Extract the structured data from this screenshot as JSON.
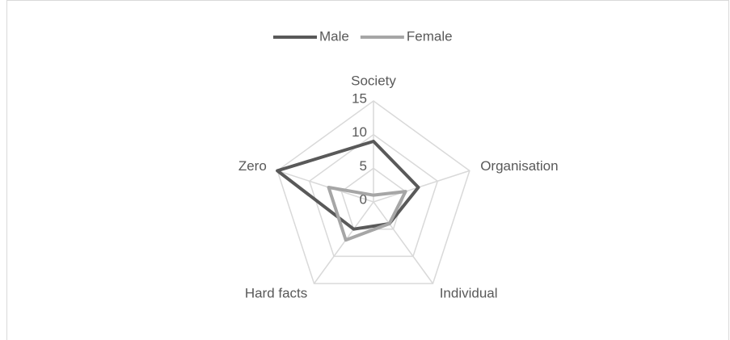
{
  "chart_data": {
    "type": "radar",
    "categories": [
      "Society",
      "Organisation",
      "Individual",
      "Hard facts",
      "Zero"
    ],
    "series": [
      {
        "name": "Male",
        "color": "#595959",
        "values": [
          9,
          7,
          4,
          5,
          15
        ]
      },
      {
        "name": "Female",
        "color": "#a6a6a6",
        "values": [
          1,
          5,
          4,
          7,
          7
        ]
      }
    ],
    "ylim": [
      0,
      15
    ],
    "yticks": [
      0,
      5,
      10,
      15
    ],
    "grid": true,
    "legend": "top"
  }
}
